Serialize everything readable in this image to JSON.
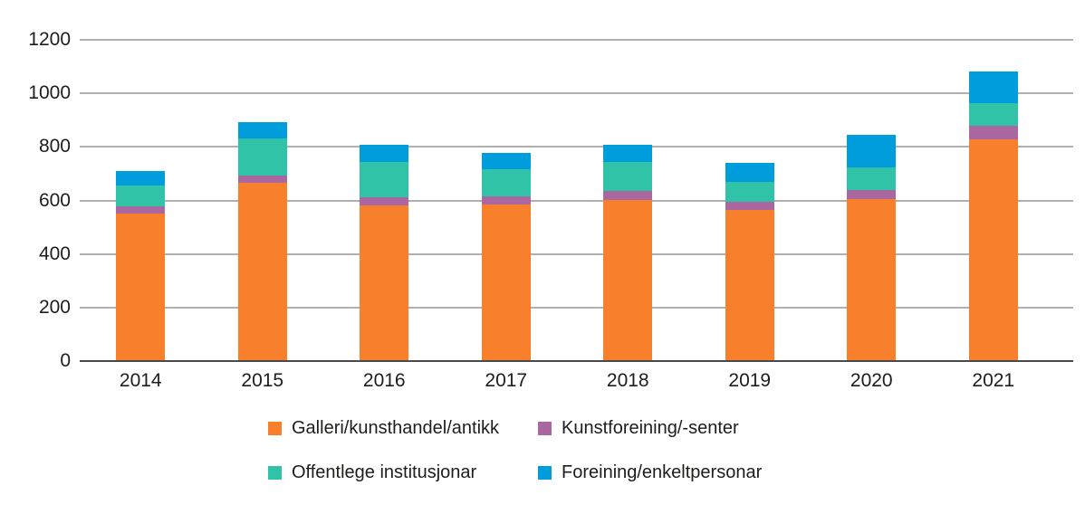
{
  "chart_data": {
    "type": "bar",
    "stacked": true,
    "title": "",
    "xlabel": "",
    "ylabel": "",
    "categories": [
      "2014",
      "2015",
      "2016",
      "2017",
      "2018",
      "2019",
      "2020",
      "2021"
    ],
    "series": [
      {
        "name": "Galleri/kunsthandel/antikk",
        "color": "#F8802C",
        "values": [
          550,
          665,
          580,
          586,
          602,
          565,
          606,
          827
        ]
      },
      {
        "name": "Kunstforeining/-senter",
        "color": "#AB679F",
        "values": [
          28,
          28,
          32,
          28,
          34,
          30,
          34,
          51
        ]
      },
      {
        "name": "Offentlege institusjonar",
        "color": "#30C3A8",
        "values": [
          79,
          138,
          133,
          102,
          107,
          75,
          85,
          85
        ]
      },
      {
        "name": "Foreining/enkeltpersonar",
        "color": "#009DDC",
        "values": [
          54,
          61,
          62,
          60,
          64,
          72,
          119,
          120
        ]
      }
    ],
    "totals": [
      711,
      892,
      807,
      776,
      807,
      742,
      844,
      1083
    ],
    "ylim": [
      0,
      1200
    ],
    "yticks": [
      0,
      200,
      400,
      600,
      800,
      1000,
      1200
    ],
    "grid": true,
    "gridline_color": "#b0b0b0",
    "baseline_color": "#4a4a4a",
    "text_color": "#1d1d1b",
    "legend_position": "bottom",
    "stack_order_bottom_to_top": [
      "Galleri/kunsthandel/antikk",
      "Kunstforeining/-senter",
      "Offentlege institusjonar",
      "Foreining/enkeltpersonar"
    ]
  }
}
